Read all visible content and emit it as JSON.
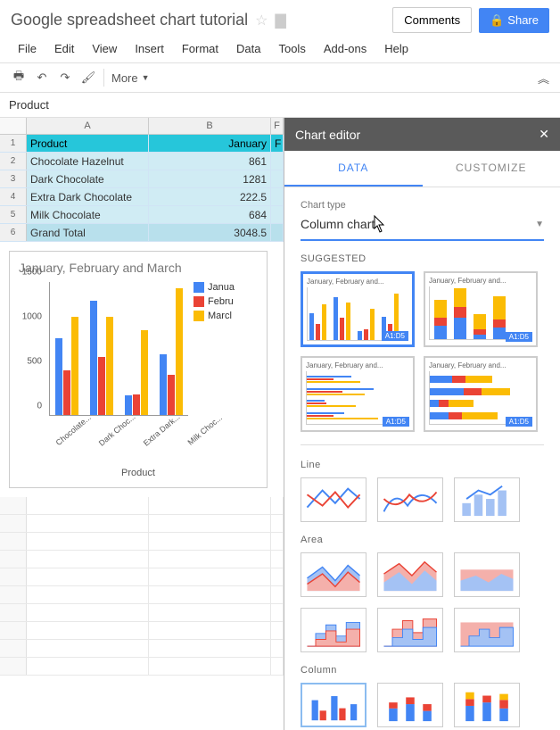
{
  "doc_title": "Google spreadsheet chart tutorial",
  "buttons": {
    "comments": "Comments",
    "share": "Share"
  },
  "menus": [
    "File",
    "Edit",
    "View",
    "Insert",
    "Format",
    "Data",
    "Tools",
    "Add-ons",
    "Help"
  ],
  "toolbar": {
    "more": "More"
  },
  "formula_bar": "Product",
  "columns": [
    "A",
    "B",
    "F"
  ],
  "table": {
    "header": [
      "Product",
      "January",
      "F"
    ],
    "rows": [
      [
        "Chocolate Hazelnut",
        "861",
        ""
      ],
      [
        "Dark Chocolate",
        "1281",
        ""
      ],
      [
        "Extra Dark Chocolate",
        "222.5",
        ""
      ],
      [
        "Milk Chocolate",
        "684",
        ""
      ]
    ],
    "total": [
      "Grand Total",
      "3048.5",
      ""
    ]
  },
  "chart": {
    "title": "January, February and March",
    "categories": [
      "Chocolate...",
      "Dark Choc...",
      "Extra Dark...",
      "Milk Choc..."
    ],
    "series": [
      {
        "name": "Janua",
        "color": "#4285f4",
        "values": [
          861,
          1281,
          222.5,
          684
        ]
      },
      {
        "name": "Febru",
        "color": "#ea4335",
        "values": [
          500,
          650,
          230,
          450
        ]
      },
      {
        "name": "Marcl",
        "color": "#fbbc04",
        "values": [
          1100,
          1100,
          950,
          1420
        ]
      }
    ],
    "ymax": 1500,
    "yticks": [
      0,
      500,
      1000,
      1500
    ],
    "xaxis_title": "Product"
  },
  "editor": {
    "title": "Chart editor",
    "tabs": {
      "data": "DATA",
      "customize": "CUSTOMIZE"
    },
    "chart_type_label": "Chart type",
    "chart_type_value": "Column chart",
    "suggested_label": "SUGGESTED",
    "suggested_thumbs_title": "January, February and...",
    "badge": "A1:D5",
    "sections": {
      "line": "Line",
      "area": "Area",
      "column": "Column"
    },
    "colors": {
      "blue": "#4285f4",
      "red": "#ea4335",
      "orange": "#fbbc04",
      "lightblue": "#a4c2f4",
      "lightred": "#f4b0ab"
    }
  }
}
